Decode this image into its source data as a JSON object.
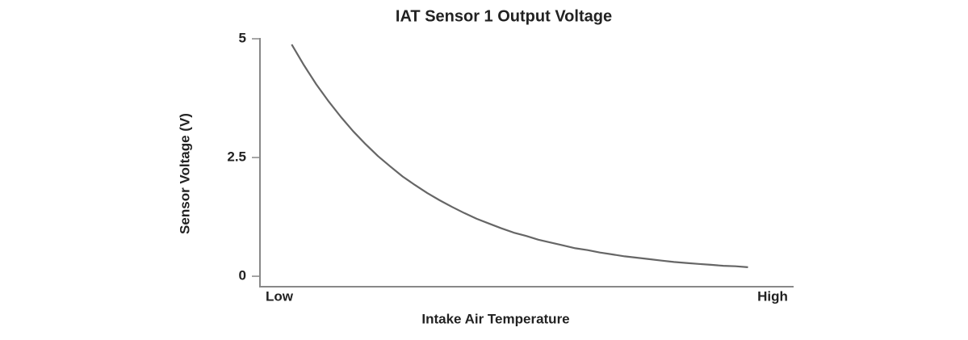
{
  "chart_data": {
    "type": "line",
    "title": "IAT Sensor 1 Output Voltage",
    "x_label": "Intake Air Temperature",
    "y_label": "Sensor Voltage (V)",
    "categories": [
      "Low",
      null,
      null,
      null,
      null,
      null,
      null,
      null,
      null,
      null,
      null,
      null,
      null,
      null,
      null,
      null,
      null,
      null,
      null,
      null,
      null,
      null,
      null,
      null,
      null,
      null,
      null,
      null,
      null,
      null,
      null,
      null,
      null,
      null,
      null,
      null,
      null,
      null,
      null,
      null,
      "High"
    ],
    "values": [
      null,
      4.88,
      4.44,
      4.04,
      3.68,
      3.35,
      3.05,
      2.78,
      2.53,
      2.31,
      2.1,
      1.92,
      1.75,
      1.6,
      1.46,
      1.33,
      1.21,
      1.11,
      1.01,
      0.92,
      0.85,
      0.77,
      0.71,
      0.65,
      0.59,
      0.55,
      0.5,
      0.46,
      0.42,
      0.39,
      0.36,
      0.33,
      0.3,
      0.28,
      0.26,
      0.24,
      0.22,
      0.21,
      0.19,
      null,
      null
    ],
    "color": "#666666",
    "ylim": [
      -0.22,
      5
    ],
    "yticks": [
      0,
      2.5,
      5
    ],
    "grid": false
  }
}
